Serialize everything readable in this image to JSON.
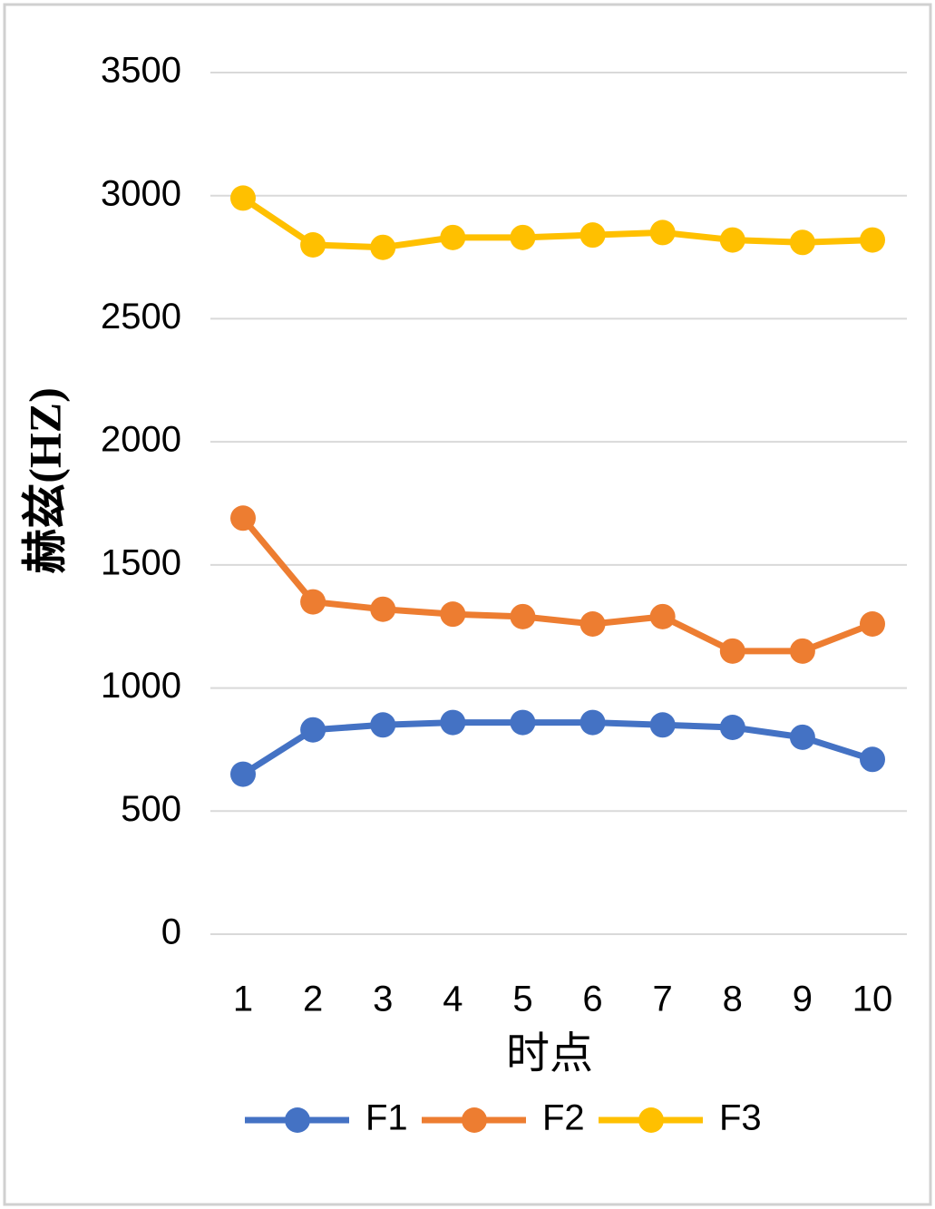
{
  "chart_data": {
    "type": "line",
    "y_label": "赫兹(HZ)",
    "x_label": "时点",
    "categories": [
      "1",
      "2",
      "3",
      "4",
      "5",
      "6",
      "7",
      "8",
      "9",
      "10"
    ],
    "series": [
      {
        "name": "F1",
        "color": "#4472c4",
        "values": [
          650,
          830,
          850,
          860,
          860,
          860,
          850,
          840,
          800,
          710
        ]
      },
      {
        "name": "F2",
        "color": "#ed7d31",
        "values": [
          1690,
          1350,
          1320,
          1300,
          1290,
          1260,
          1290,
          1150,
          1150,
          1260
        ]
      },
      {
        "name": "F3",
        "color": "#ffc000",
        "values": [
          2990,
          2800,
          2790,
          2830,
          2830,
          2840,
          2850,
          2820,
          2810,
          2820
        ]
      }
    ],
    "ylim": [
      0,
      3500
    ],
    "yticks": [
      0,
      500,
      1000,
      1500,
      2000,
      2500,
      3000,
      3500
    ],
    "grid": true,
    "legend": "bottom"
  }
}
